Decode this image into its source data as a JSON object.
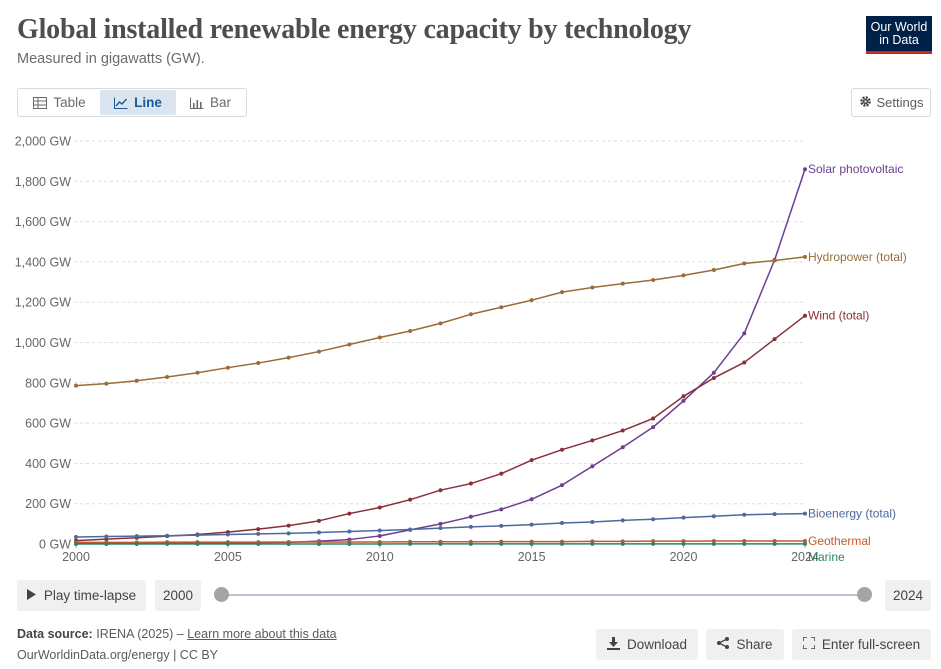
{
  "header": {
    "title": "Global installed renewable energy capacity by technology",
    "subtitle": "Measured in gigawatts (GW).",
    "logo_line1": "Our World",
    "logo_line2": "in Data"
  },
  "tabs": [
    {
      "label": "Table",
      "icon": "table-icon"
    },
    {
      "label": "Line",
      "icon": "line-chart-icon",
      "active": true
    },
    {
      "label": "Bar",
      "icon": "bar-chart-icon"
    }
  ],
  "settings_label": "Settings",
  "chart_data": {
    "type": "line",
    "x": [
      2000,
      2001,
      2002,
      2003,
      2004,
      2005,
      2006,
      2007,
      2008,
      2009,
      2010,
      2011,
      2012,
      2013,
      2014,
      2015,
      2016,
      2017,
      2018,
      2019,
      2020,
      2021,
      2022,
      2023,
      2024
    ],
    "xticks": [
      "2000",
      "2005",
      "2010",
      "2015",
      "2020",
      "2024"
    ],
    "yticks": [
      "0 GW",
      "200 GW",
      "400 GW",
      "600 GW",
      "800 GW",
      "1,000 GW",
      "1,200 GW",
      "1,400 GW",
      "1,600 GW",
      "1,800 GW",
      "2,000 GW"
    ],
    "ylim": [
      0,
      2000
    ],
    "grid": "horizontal dashed",
    "series": [
      {
        "name": "Solar photovoltaic",
        "color": "#6d3e91",
        "values": [
          1,
          1,
          2,
          3,
          4,
          5,
          6,
          8,
          14,
          22,
          40,
          70,
          100,
          135,
          172,
          222,
          292,
          386,
          480,
          580,
          710,
          850,
          1045,
          1410,
          1860
        ]
      },
      {
        "name": "Hydropower (total)",
        "color": "#996d39",
        "values": [
          786,
          796,
          810,
          829,
          850,
          875,
          898,
          925,
          955,
          990,
          1025,
          1057,
          1095,
          1140,
          1175,
          1210,
          1250,
          1273,
          1292,
          1310,
          1333,
          1360,
          1392,
          1407,
          1425
        ]
      },
      {
        "name": "Wind (total)",
        "color": "#883039",
        "values": [
          17,
          24,
          31,
          39,
          47,
          59,
          74,
          91,
          115,
          151,
          181,
          220,
          267,
          300,
          349,
          416,
          468,
          514,
          563,
          623,
          733,
          824,
          901,
          1017,
          1133
        ]
      },
      {
        "name": "Bioenergy (total)",
        "color": "#4c6a9c",
        "values": [
          35,
          37,
          39,
          41,
          44,
          47,
          50,
          53,
          57,
          62,
          67,
          72,
          79,
          85,
          90,
          96,
          104,
          109,
          117,
          123,
          131,
          138,
          145,
          148,
          151
        ]
      },
      {
        "name": "Geothermal",
        "color": "#c15a2b",
        "values": [
          8,
          8,
          8,
          9,
          9,
          9,
          9,
          10,
          10,
          10,
          10,
          11,
          11,
          11,
          12,
          12,
          12,
          13,
          13,
          14,
          14,
          15,
          15,
          15,
          15
        ]
      },
      {
        "name": "Marine",
        "color": "#2d8566",
        "values": [
          0.3,
          0.3,
          0.3,
          0.3,
          0.3,
          0.3,
          0.3,
          0.3,
          0.3,
          0.3,
          0.3,
          0.5,
          0.5,
          0.5,
          0.5,
          0.5,
          0.5,
          0.5,
          0.5,
          0.5,
          0.5,
          0.5,
          0.5,
          0.5,
          0.5
        ]
      }
    ]
  },
  "timeline": {
    "play_label": "Play time-lapse",
    "start_year": "2000",
    "end_year": "2024"
  },
  "footer": {
    "source_label": "Data source:",
    "source_text": "IRENA (2025) – ",
    "learn_more": "Learn more about this data",
    "url": "OurWorldinData.org/energy | CC BY"
  },
  "actions": {
    "download": "Download",
    "share": "Share",
    "fullscreen": "Enter full-screen"
  }
}
